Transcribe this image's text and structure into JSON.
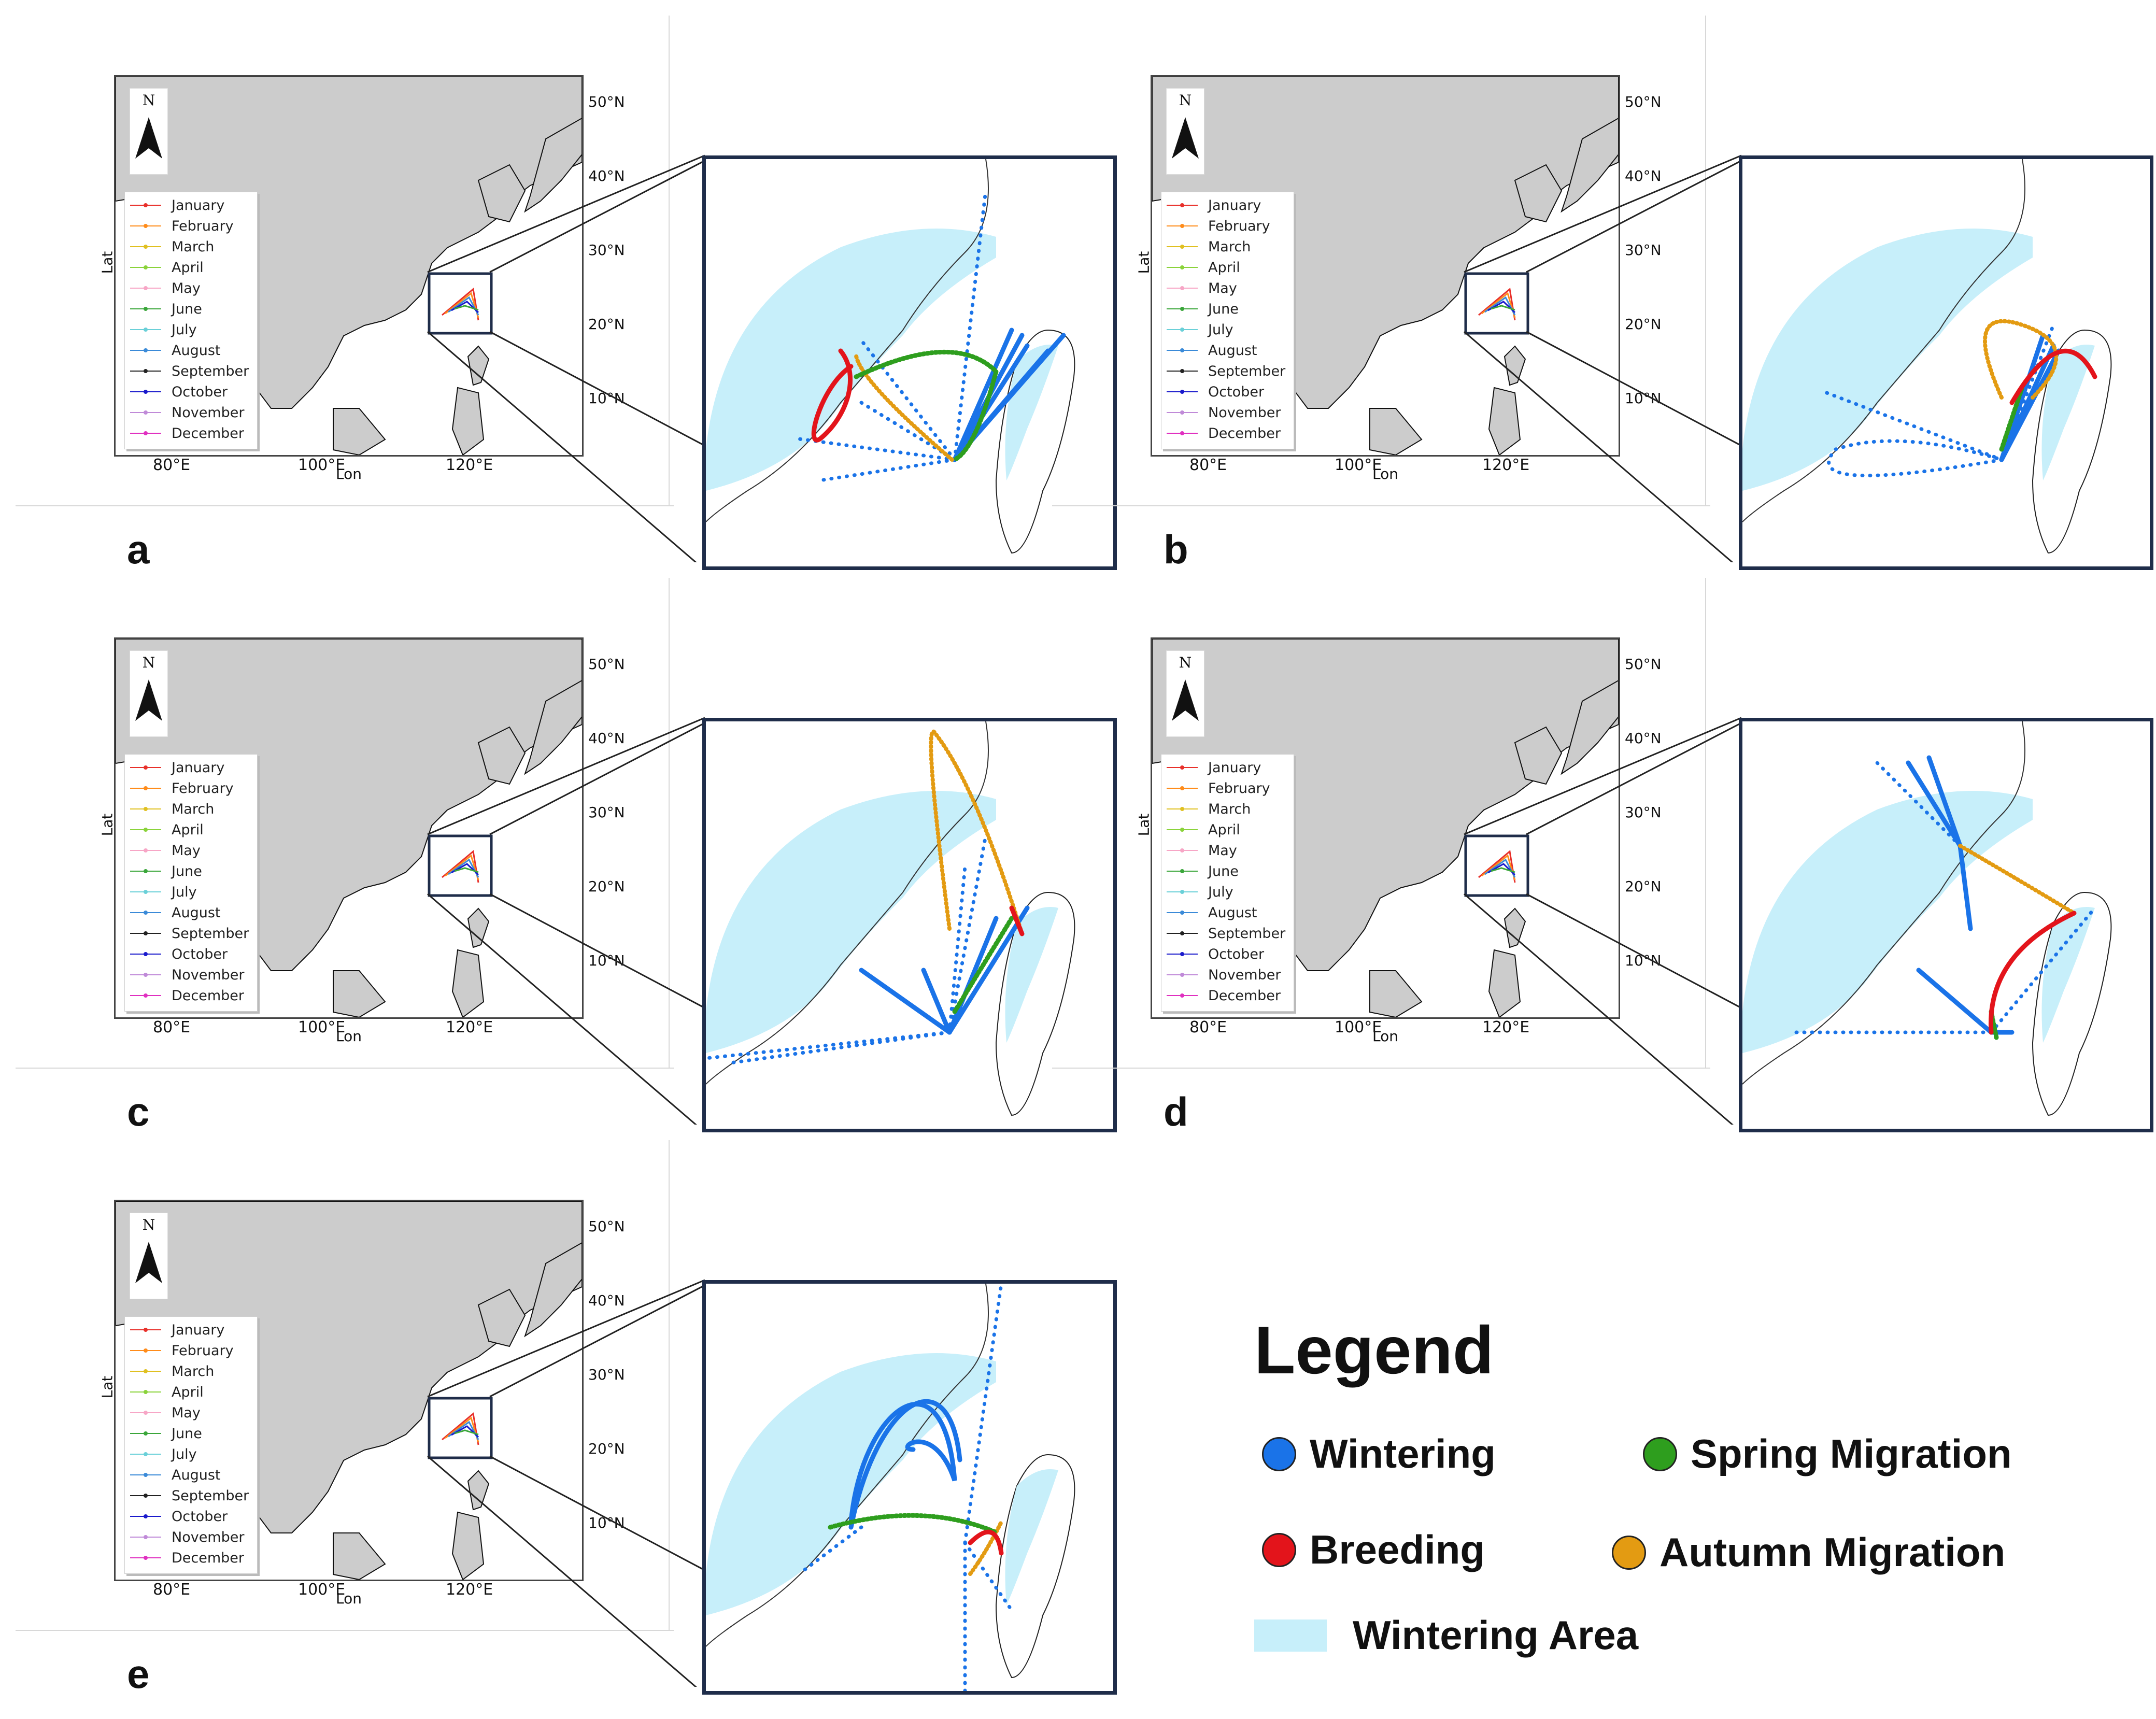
{
  "map_common": {
    "lat_ticks": [
      "50°N",
      "40°N",
      "30°N",
      "20°N",
      "10°N"
    ],
    "lon_ticks": [
      "80°E",
      "100°E",
      "120°E"
    ],
    "xlabel": "Lon",
    "ylabel": "Lat",
    "north_label": "N",
    "months": [
      {
        "label": "January",
        "color": "#e8302a"
      },
      {
        "label": "February",
        "color": "#ff8c1a"
      },
      {
        "label": "March",
        "color": "#e0c020"
      },
      {
        "label": "April",
        "color": "#8ad33a"
      },
      {
        "label": "May",
        "color": "#f7a6c6"
      },
      {
        "label": "June",
        "color": "#3aa63a"
      },
      {
        "label": "July",
        "color": "#6ad0d8"
      },
      {
        "label": "August",
        "color": "#3a8ad8"
      },
      {
        "label": "September",
        "color": "#222222"
      },
      {
        "label": "October",
        "color": "#1a1acc"
      },
      {
        "label": "November",
        "color": "#c08ad8"
      },
      {
        "label": "December",
        "color": "#e030c0"
      }
    ]
  },
  "panels": [
    {
      "letter": "a"
    },
    {
      "letter": "b"
    },
    {
      "letter": "c"
    },
    {
      "letter": "d"
    },
    {
      "letter": "e"
    }
  ],
  "legend": {
    "title": "Legend",
    "wintering": {
      "label": "Wintering",
      "color": "#1a73e8"
    },
    "spring": {
      "label": "Spring Migration",
      "color": "#2e9e1e"
    },
    "breeding": {
      "label": "Breeding",
      "color": "#e3141b"
    },
    "autumn": {
      "label": "Autumn Migration",
      "color": "#e39b12"
    },
    "area": {
      "label": "Wintering Area",
      "color": "#c7effa"
    }
  }
}
